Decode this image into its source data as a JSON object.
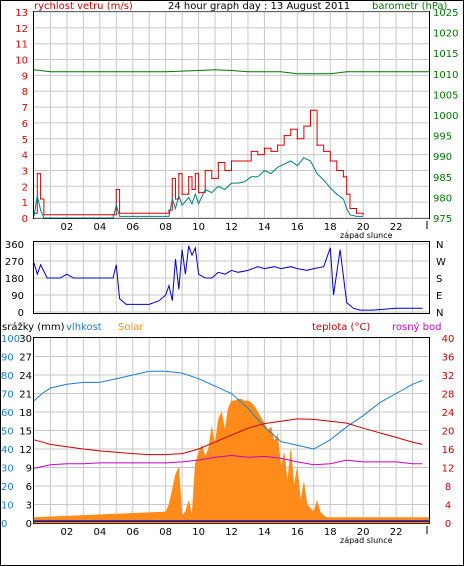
{
  "header": {
    "title": "24 hour graph day : 13 August 2011",
    "left_label": "rychlost vetru (m/s)",
    "right_label": "barometr (hPa)"
  },
  "colors": {
    "wind_avg": "#008080",
    "wind_gust": "#dd0000",
    "pressure": "#007700",
    "direction": "#0000cc",
    "humidity": "#1a7fd1",
    "solar": "#ff8c1a",
    "temperature": "#cc0000",
    "dewpoint": "#cc00cc",
    "rain": "#000099",
    "grid": "#c8c8c8",
    "frame": "#000000"
  },
  "chart_data": [
    {
      "id": "wind",
      "type": "line",
      "title": "24 hour graph day : 13 August 2011",
      "ylabel": "rychlost vetru (m/s)",
      "y2label": "barometr (hPa)",
      "ylim": [
        0,
        13
      ],
      "y2lim": [
        975,
        1025
      ],
      "yticks": [
        "0",
        "1",
        "2",
        "3",
        "4",
        "5",
        "6",
        "7",
        "8",
        "9",
        "10",
        "11",
        "12",
        "13"
      ],
      "y2ticks": [
        "975",
        "980",
        "985",
        "990",
        "995",
        "1000",
        "1005",
        "1010",
        "1015",
        "1020",
        "1025"
      ],
      "xticks": [
        "02",
        "04",
        "06",
        "08",
        "10",
        "12",
        "14",
        "16",
        "18",
        "20",
        "22"
      ],
      "x_annotation": "západ slunce",
      "xlim": [
        0,
        24
      ],
      "series": [
        {
          "kind": "gust",
          "x": [
            0.0,
            0.2,
            0.4,
            0.6,
            4.8,
            5.0,
            5.2,
            8.2,
            8.4,
            8.6,
            8.8,
            9.0,
            9.4,
            9.6,
            9.8,
            10.0,
            10.4,
            10.8,
            11.2,
            11.6,
            12.0,
            12.4,
            12.8,
            13.2,
            13.6,
            14.0,
            14.4,
            14.8,
            15.2,
            15.6,
            16.0,
            16.4,
            16.8,
            17.2,
            17.6,
            18.0,
            18.4,
            18.8,
            19.0,
            19.2,
            19.6,
            20.0
          ],
          "y": [
            0.3,
            2.8,
            1.2,
            0.2,
            0.2,
            1.8,
            0.3,
            0.5,
            2.5,
            1.2,
            2.8,
            1.5,
            2.6,
            1.8,
            2.8,
            1.6,
            3.0,
            2.5,
            3.5,
            3.0,
            3.6,
            3.6,
            3.6,
            4.2,
            4.0,
            4.4,
            4.2,
            4.6,
            5.2,
            5.6,
            5.0,
            5.8,
            6.8,
            4.6,
            4.2,
            3.6,
            3.0,
            2.6,
            1.5,
            0.6,
            0.3,
            0.2
          ]
        },
        {
          "kind": "avg",
          "x": [
            0.0,
            0.2,
            0.4,
            0.6,
            4.8,
            5.0,
            5.2,
            8.2,
            8.4,
            8.6,
            8.8,
            9.0,
            9.4,
            9.6,
            9.8,
            10.0,
            10.4,
            10.8,
            11.2,
            11.6,
            12.0,
            12.4,
            12.8,
            13.2,
            13.6,
            14.0,
            14.4,
            14.8,
            15.2,
            15.6,
            16.0,
            16.4,
            16.8,
            17.2,
            17.6,
            18.0,
            18.4,
            18.8,
            19.0,
            19.2,
            19.6,
            20.0
          ],
          "y": [
            0.1,
            1.4,
            0.5,
            0.0,
            0.0,
            0.8,
            0.1,
            0.1,
            1.2,
            0.6,
            1.4,
            0.8,
            1.3,
            0.9,
            1.5,
            0.9,
            1.8,
            1.6,
            2.0,
            1.8,
            2.2,
            2.2,
            2.3,
            2.6,
            2.6,
            3.0,
            2.8,
            3.2,
            3.4,
            3.6,
            3.3,
            3.8,
            3.6,
            2.8,
            2.4,
            1.9,
            1.5,
            1.2,
            0.6,
            0.2,
            0.1,
            0.1
          ]
        },
        {
          "kind": "pressure",
          "x": [
            0,
            1,
            2,
            4,
            6,
            8,
            10,
            11,
            12,
            13,
            14,
            15,
            16,
            17,
            18,
            19,
            20,
            21,
            22,
            23,
            24
          ],
          "y": [
            1011,
            1010.5,
            1010.5,
            1010.5,
            1010.5,
            1010.5,
            1010.8,
            1011,
            1010.8,
            1010.5,
            1010.5,
            1010.5,
            1010,
            1010,
            1010,
            1010.5,
            1010.5,
            1010.5,
            1010.5,
            1010.5,
            1010.5
          ]
        }
      ]
    },
    {
      "id": "direction",
      "type": "line",
      "ylabel": "",
      "yticks": [
        "0",
        "90",
        "180",
        "270",
        "360"
      ],
      "y2ticks": [
        "N",
        "W",
        "S",
        "E",
        "N"
      ],
      "ylim": [
        0,
        360
      ],
      "xlim": [
        0,
        24
      ],
      "series": [
        {
          "name": "direction",
          "x": [
            0.0,
            0.2,
            0.4,
            0.8,
            1.0,
            1.6,
            2.0,
            2.4,
            3.0,
            3.6,
            4.0,
            4.8,
            5.0,
            5.2,
            5.6,
            7.0,
            7.6,
            8.0,
            8.2,
            8.4,
            8.6,
            8.8,
            9.0,
            9.2,
            9.4,
            9.6,
            9.8,
            10.0,
            10.4,
            10.8,
            11.2,
            11.6,
            12.0,
            12.4,
            13.0,
            13.6,
            14.0,
            14.6,
            15.0,
            15.6,
            16.0,
            16.6,
            17.0,
            17.6,
            18.0,
            18.2,
            18.6,
            19.0,
            19.4,
            19.8,
            20.0,
            20.6,
            22.0,
            23.6
          ],
          "y": [
            260,
            200,
            250,
            180,
            180,
            180,
            200,
            180,
            180,
            180,
            180,
            180,
            250,
            70,
            40,
            40,
            60,
            90,
            140,
            60,
            280,
            120,
            330,
            200,
            350,
            300,
            340,
            200,
            180,
            180,
            210,
            200,
            220,
            210,
            220,
            240,
            230,
            240,
            230,
            240,
            230,
            220,
            230,
            240,
            340,
            90,
            330,
            50,
            20,
            10,
            10,
            10,
            20,
            20
          ]
        }
      ]
    },
    {
      "id": "climate",
      "type": "line",
      "ylabel": "srážky (mm)",
      "ylabel2": "vlhkost",
      "ylabel3": "Solar",
      "y2label": "teplota (°C)",
      "y2label2": "rosný bod",
      "rain_ticks": [
        "0",
        "3",
        "6",
        "9",
        "12",
        "15",
        "18",
        "21",
        "24",
        "27",
        "30"
      ],
      "humidity_ticks": [
        "0",
        "10",
        "20",
        "30",
        "40",
        "50",
        "60",
        "70",
        "80",
        "90",
        "100"
      ],
      "temp_ticks": [
        "0",
        "4",
        "8",
        "12",
        "16",
        "20",
        "24",
        "28",
        "32",
        "36",
        "40"
      ],
      "xticks": [
        "02",
        "04",
        "06",
        "08",
        "10",
        "12",
        "14",
        "16",
        "18",
        "20",
        "22"
      ],
      "x_annotation": "západ slunce",
      "xlim": [
        0,
        24
      ],
      "series": [
        {
          "kind": "humidity",
          "x": [
            0,
            0.5,
            1,
            2,
            3,
            4,
            5,
            6,
            7,
            8,
            9,
            10,
            11,
            12,
            13,
            14,
            15,
            16,
            17,
            18,
            19,
            20,
            21,
            22,
            23,
            23.6
          ],
          "y": [
            66,
            70,
            73,
            75,
            76,
            76,
            78,
            80,
            82,
            82,
            81,
            78,
            74,
            70,
            62,
            52,
            44,
            42,
            40,
            45,
            52,
            58,
            65,
            70,
            75,
            77
          ]
        },
        {
          "kind": "solar",
          "x": [
            0,
            8.0,
            8.2,
            8.4,
            8.6,
            8.8,
            9.0,
            9.2,
            9.4,
            9.6,
            9.8,
            10.0,
            10.2,
            10.4,
            10.6,
            10.8,
            11.0,
            11.2,
            11.4,
            11.6,
            11.8,
            12.0,
            12.2,
            12.4,
            12.6,
            12.8,
            13.0,
            13.2,
            13.4,
            13.6,
            13.8,
            14.0,
            14.2,
            14.4,
            14.6,
            14.8,
            15.0,
            15.2,
            15.4,
            15.6,
            15.8,
            16.0,
            16.2,
            16.4,
            16.6,
            16.8,
            17.0,
            17.2,
            17.4,
            17.6,
            17.8,
            18.0,
            24
          ],
          "y": [
            3,
            6,
            10,
            18,
            26,
            30,
            4,
            6,
            12,
            4,
            32,
            38,
            42,
            36,
            40,
            52,
            42,
            56,
            60,
            50,
            62,
            66,
            66,
            67,
            67,
            66,
            66,
            65,
            63,
            60,
            57,
            54,
            50,
            52,
            44,
            48,
            30,
            38,
            22,
            40,
            20,
            30,
            12,
            22,
            10,
            8,
            6,
            12,
            6,
            4,
            3,
            3,
            3
          ]
        },
        {
          "kind": "temperature",
          "x": [
            0,
            1,
            2,
            3,
            4,
            5,
            6,
            7,
            8,
            9,
            10,
            11,
            12,
            13,
            14,
            15,
            16,
            17,
            18,
            19,
            20,
            21,
            22,
            23,
            23.6
          ],
          "y": [
            18.0,
            17.0,
            16.5,
            16.0,
            15.6,
            15.3,
            15.0,
            14.8,
            14.8,
            15.0,
            16.0,
            17.5,
            19.0,
            20.5,
            21.5,
            22.0,
            22.5,
            22.4,
            22.0,
            21.6,
            20.5,
            19.5,
            18.5,
            17.5,
            17.0
          ]
        },
        {
          "kind": "dewpoint",
          "x": [
            0,
            1,
            2,
            3,
            4,
            5,
            6,
            7,
            8,
            9,
            10,
            11,
            12,
            13,
            14,
            15,
            16,
            17,
            18,
            19,
            20,
            21,
            22,
            23,
            23.6
          ],
          "y": [
            11.8,
            12.6,
            12.8,
            12.8,
            13.0,
            13.0,
            13.0,
            13.0,
            13.0,
            13.2,
            13.6,
            14.2,
            14.6,
            14.2,
            14.4,
            14.0,
            13.2,
            12.6,
            12.8,
            13.6,
            13.2,
            13.2,
            13.2,
            12.8,
            12.8
          ]
        },
        {
          "kind": "rain",
          "x": [
            0,
            24
          ],
          "y": [
            0.3,
            0.3
          ]
        }
      ]
    }
  ]
}
